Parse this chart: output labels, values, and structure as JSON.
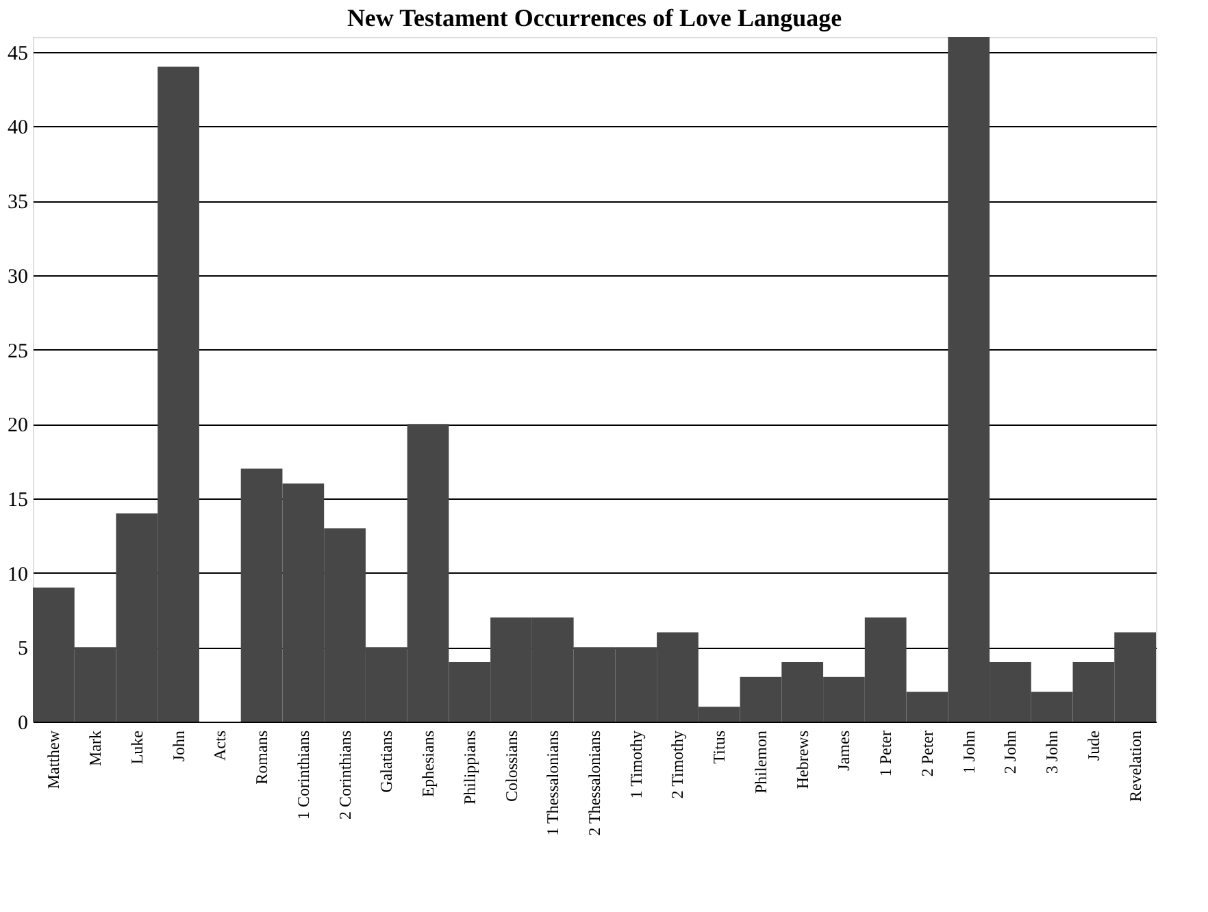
{
  "chart_data": {
    "type": "bar",
    "title": "New Testament Occurrences of Love Language",
    "categories": [
      "Matthew",
      "Mark",
      "Luke",
      "John",
      "Acts",
      "Romans",
      "1 Corinthians",
      "2 Corinthians",
      "Galatians",
      "Ephesians",
      "Philippians",
      "Colossians",
      "1 Thessalonians",
      "2 Thessalonians",
      "1 Timothy",
      "2 Timothy",
      "Titus",
      "Philemon",
      "Hebrews",
      "James",
      "1 Peter",
      "2 Peter",
      "1 John",
      "2 John",
      "3 John",
      "Jude",
      "Revelation"
    ],
    "values": [
      9,
      5,
      14,
      44,
      0,
      17,
      16,
      13,
      5,
      20,
      4,
      7,
      7,
      5,
      5,
      6,
      1,
      3,
      4,
      3,
      7,
      2,
      46,
      4,
      2,
      4,
      6
    ],
    "color": "#474747",
    "ylim": [
      0,
      46
    ],
    "yticks": [
      0,
      5,
      10,
      15,
      20,
      25,
      30,
      35,
      40,
      45
    ],
    "grid": "y"
  }
}
